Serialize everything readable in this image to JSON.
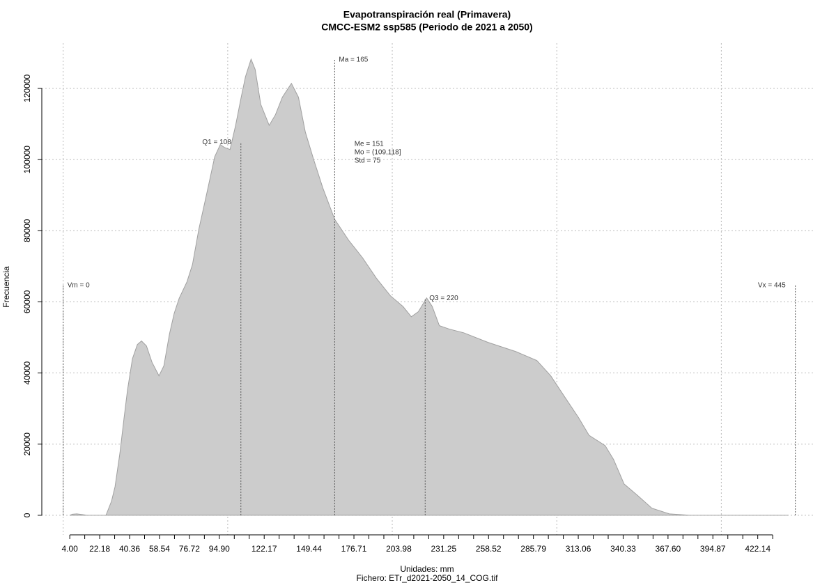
{
  "chart_data": {
    "type": "area",
    "title": "Evapotranspiración real (Primavera)",
    "subtitle": "CMCC-ESM2 ssp585 (Periodo de 2021 a 2050)",
    "xlabel": "Unidades: mm",
    "caption": "Fichero: ETr_d2021-2050_14_COG.tif",
    "ylabel": "Frecuencia",
    "color": "#cccccc",
    "line_color": "#a0a0a0",
    "x": [
      4,
      5.7,
      8.2,
      11.6,
      14.6,
      26.0,
      29.4,
      31.5,
      34.5,
      37.0,
      39.1,
      42.1,
      45.1,
      47.6,
      50.6,
      54.0,
      58.2,
      61.2,
      64.6,
      67.5,
      70.5,
      75.2,
      78.6,
      82.4,
      87.5,
      92.1,
      95.5,
      98.0,
      101.4,
      104.8,
      108.2,
      110.8,
      114.2,
      116.7,
      120.1,
      125.2,
      129.0,
      133.2,
      138.7,
      143.0,
      147.2,
      152.3,
      157.8,
      165.0,
      173.5,
      181.9,
      190.4,
      198.9,
      206.5,
      211.6,
      215.8,
      220.9,
      224.3,
      228.6,
      234.9,
      243.4,
      258.2,
      275.2,
      287.9,
      296.3,
      304.8,
      313.3,
      319.6,
      329.4,
      334.5,
      340.9,
      349.3,
      357.8,
      368.4,
      381.1,
      440.4
    ],
    "values": [
      0,
      300,
      400,
      200,
      0,
      0,
      4000,
      8000,
      17600,
      27400,
      35200,
      44000,
      48000,
      49000,
      47600,
      43000,
      39200,
      42000,
      51000,
      56800,
      61000,
      65600,
      70500,
      80300,
      91000,
      100800,
      104200,
      103400,
      102800,
      109600,
      117500,
      123300,
      128200,
      125300,
      115500,
      109600,
      112600,
      117500,
      121400,
      117500,
      107700,
      99900,
      92000,
      83200,
      77300,
      72400,
      66600,
      61700,
      58700,
      55800,
      57200,
      61100,
      58700,
      53300,
      52300,
      51300,
      48600,
      46000,
      43500,
      39200,
      33300,
      27400,
      22500,
      19600,
      15700,
      8800,
      5500,
      2000,
      400,
      0,
      0
    ],
    "xlim": [
      -13,
      457
    ],
    "ylim": [
      -5500,
      132700
    ],
    "xticks": [
      {
        "value": 4,
        "label": "4.00"
      },
      22.18,
      40.36,
      58.54,
      76.72,
      {
        "value": 94.9,
        "label": "94.90"
      },
      122.17,
      149.44,
      176.71,
      203.98,
      231.25,
      258.52,
      285.79,
      313.06,
      340.33,
      {
        "value": 367.6,
        "label": "367.60"
      },
      394.87,
      422.14
    ],
    "xticks_minor": [
      13.09,
      31.27,
      49.45,
      67.63,
      85.81,
      103.99,
      113.08,
      131.26,
      140.35,
      158.53,
      167.62,
      185.8,
      194.89,
      213.07,
      222.16,
      240.34,
      249.43,
      267.61,
      276.7,
      294.88,
      303.97,
      322.15,
      331.24,
      349.42,
      358.51,
      376.69,
      385.78,
      403.96,
      413.05,
      431.23
    ],
    "yticks": [
      0,
      20000,
      40000,
      60000,
      80000,
      100000,
      120000
    ],
    "xgrid": [
      0,
      100,
      200,
      300,
      400
    ],
    "grid": true,
    "annotations": [
      {
        "label": "Vm = 0",
        "x": 0,
        "y": 64600
      },
      {
        "label": "Q1 = 108",
        "x": 108,
        "y": 104800
      },
      {
        "label": "Ma = 165",
        "x": 165,
        "y": 128000
      },
      {
        "label": "Q3 = 220",
        "x": 220,
        "y": 61000
      },
      {
        "label": "Vx = 445",
        "x": 445,
        "y": 64600
      }
    ],
    "stats_text": [
      "Me = 151",
      "Mo = (109,118]",
      "Std = 75"
    ],
    "stats_position": [
      177,
      104000
    ]
  }
}
